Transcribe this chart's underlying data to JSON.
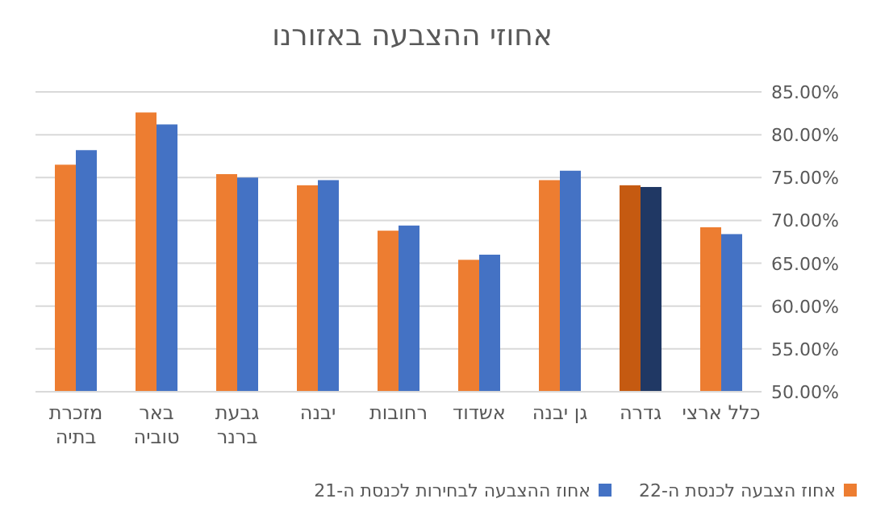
{
  "chart_data": {
    "type": "bar",
    "title": "אחוזי ההצבעה באזורנו",
    "categories": [
      "מזכרת\nבתיה",
      "באר\nטוביה",
      "גבעת\nברנר",
      "יבנה",
      "רחובות",
      "אשדוד",
      "גן יבנה",
      "גדרה",
      "כלל ארצי"
    ],
    "series": [
      {
        "name": "אחוז הצבעה לכנסת ה-22",
        "color": "#ed7d31",
        "colors": [
          "#ed7d31",
          "#ed7d31",
          "#ed7d31",
          "#ed7d31",
          "#ed7d31",
          "#ed7d31",
          "#ed7d31",
          "#c55a11",
          "#ed7d31"
        ],
        "values": [
          76.5,
          82.6,
          75.4,
          74.1,
          68.8,
          65.4,
          74.7,
          74.1,
          69.2
        ]
      },
      {
        "name": "אחוז ההצבעה לבחירות לכנסת ה-21",
        "color": "#4472c4",
        "colors": [
          "#4472c4",
          "#4472c4",
          "#4472c4",
          "#4472c4",
          "#4472c4",
          "#4472c4",
          "#4472c4",
          "#203864",
          "#4472c4"
        ],
        "values": [
          78.2,
          81.2,
          75.0,
          74.7,
          69.4,
          66.0,
          75.8,
          73.9,
          68.4
        ]
      }
    ],
    "ylim": [
      50,
      85
    ],
    "yticks": [
      {
        "value": 50,
        "label": "50.00%"
      },
      {
        "value": 55,
        "label": "55.00%"
      },
      {
        "value": 60,
        "label": "60.00%"
      },
      {
        "value": 65,
        "label": "65.00%"
      },
      {
        "value": 70,
        "label": "70.00%"
      },
      {
        "value": 75,
        "label": "75.00%"
      },
      {
        "value": 80,
        "label": "80.00%"
      },
      {
        "value": 85,
        "label": "85.00%"
      }
    ],
    "grid": "y",
    "legend": "bottom"
  }
}
